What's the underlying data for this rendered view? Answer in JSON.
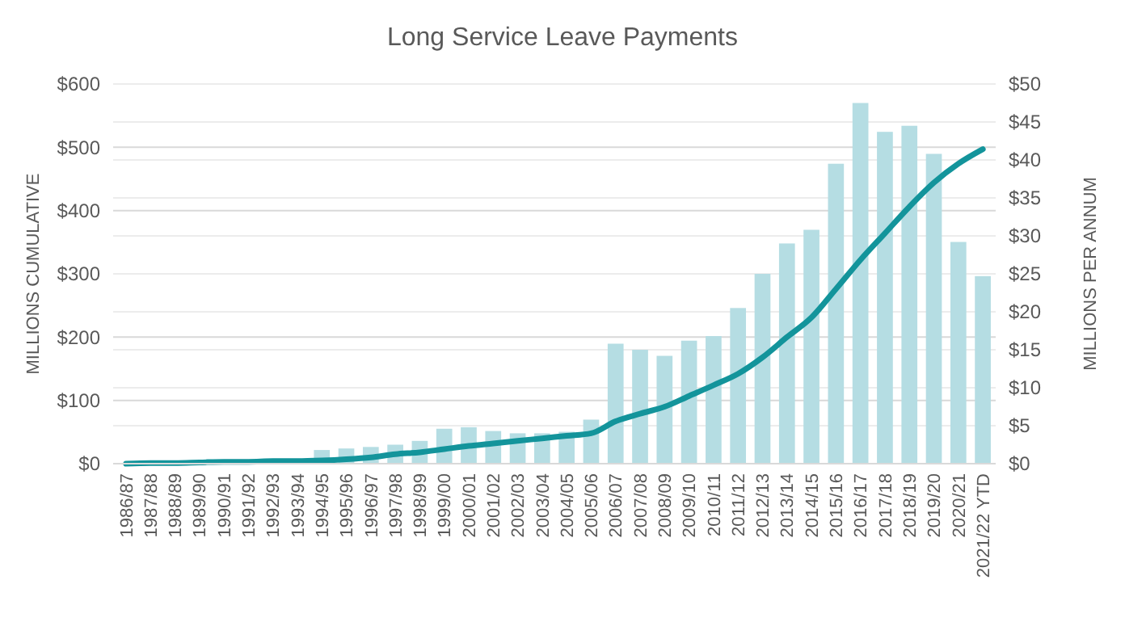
{
  "chart_data": {
    "type": "bar",
    "title": "Long Service Leave Payments",
    "ylabel": "MILLIONS CUMULATIVE",
    "y2label": "MILLIONS PER ANNUM",
    "categories": [
      "1986/87",
      "1987/88",
      "1988/89",
      "1989/90",
      "1990/91",
      "1991/92",
      "1992/93",
      "1993/94",
      "1994/95",
      "1995/96",
      "1996/97",
      "1997/98",
      "1998/99",
      "1999/00",
      "2000/01",
      "2001/02",
      "2002/03",
      "2003/04",
      "2004/05",
      "2005/06",
      "2006/07",
      "2007/08",
      "2008/09",
      "2009/10",
      "2010/11",
      "2011/12",
      "2012/13",
      "2013/14",
      "2014/15",
      "2015/16",
      "2016/17",
      "2017/18",
      "2018/19",
      "2019/20",
      "2020/21",
      "2021/22 YTD"
    ],
    "series": [
      {
        "axis": "y2",
        "color": "#b5dde3",
        "values": [
          null,
          null,
          null,
          null,
          null,
          null,
          null,
          null,
          1.8,
          2,
          2.2,
          2.5,
          3,
          4.6,
          4.8,
          4.3,
          4,
          4,
          4.2,
          5.8,
          15.8,
          15,
          14.2,
          16.2,
          16.8,
          20.5,
          25,
          29,
          30.8,
          39.5,
          47.5,
          43.7,
          44.5,
          40.8,
          29.2,
          24.7
        ]
      },
      {
        "type": "line",
        "axis": "y",
        "color": "#13949b",
        "values": [
          0,
          1,
          1,
          2,
          3,
          3,
          4,
          4,
          5,
          7,
          10,
          15,
          18,
          23,
          28,
          32,
          36,
          40,
          44,
          48,
          67,
          79,
          90,
          107,
          124,
          142,
          168,
          200,
          231,
          276,
          322,
          364,
          406,
          444,
          474,
          497
        ]
      }
    ],
    "ylim": [
      0,
      600
    ],
    "yticks": [
      {
        "value": 0,
        "label": "$0"
      },
      {
        "value": 100,
        "label": "$100"
      },
      {
        "value": 200,
        "label": "$200"
      },
      {
        "value": 300,
        "label": "$300"
      },
      {
        "value": 400,
        "label": "$400"
      },
      {
        "value": 500,
        "label": "$500"
      },
      {
        "value": 600,
        "label": "$600"
      }
    ],
    "y2lim": [
      0,
      50
    ],
    "y2ticks": [
      {
        "value": 0,
        "label": "$0"
      },
      {
        "value": 5,
        "label": "$5"
      },
      {
        "value": 10,
        "label": "$10"
      },
      {
        "value": 15,
        "label": "$15"
      },
      {
        "value": 20,
        "label": "$20"
      },
      {
        "value": 25,
        "label": "$25"
      },
      {
        "value": 30,
        "label": "$30"
      },
      {
        "value": 35,
        "label": "$35"
      },
      {
        "value": 40,
        "label": "$40"
      },
      {
        "value": 45,
        "label": "$45"
      },
      {
        "value": 50,
        "label": "$50"
      }
    ],
    "grid": true
  }
}
